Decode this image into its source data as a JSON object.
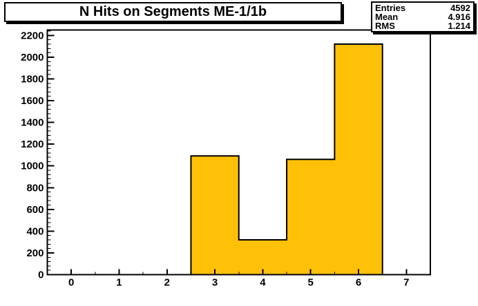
{
  "title_box": {
    "text": "N Hits on Segments ME-1/1b"
  },
  "stats_box": {
    "rows": [
      {
        "label": "Entries",
        "value": "4592"
      },
      {
        "label": "Mean",
        "value": "4.916"
      },
      {
        "label": "RMS",
        "value": "1.214"
      }
    ]
  },
  "chart_data": {
    "type": "bar",
    "title": "N Hits on Segments ME-1/1b",
    "categories": [
      0,
      1,
      2,
      3,
      4,
      5,
      6,
      7
    ],
    "values": [
      0,
      0,
      0,
      1092,
      320,
      1060,
      2120,
      0
    ],
    "bin_width": 1,
    "xlim": [
      -0.5,
      7.5
    ],
    "ylim": [
      0,
      2250
    ],
    "x_tick_labels": [
      "0",
      "1",
      "2",
      "3",
      "4",
      "5",
      "6",
      "7"
    ],
    "x_major_ticks": [
      0,
      1,
      2,
      3,
      4,
      5,
      6,
      7
    ],
    "x_minor_ticks": [
      0.5,
      1.5,
      2.5,
      3.5,
      4.5,
      5.5,
      6.5
    ],
    "y_tick_labels": [
      "0",
      "200",
      "400",
      "600",
      "800",
      "1000",
      "1200",
      "1400",
      "1600",
      "1800",
      "2000",
      "2200"
    ],
    "y_major_step": 200,
    "y_minor_step": 40,
    "grid": "off",
    "legend": "none",
    "bar_color": "#FFC107",
    "line_color": "#000000",
    "frame_color": "#000000",
    "background_color": "#FFFFFF",
    "stats": {
      "entries": 4592,
      "mean": 4.916,
      "rms": 1.214
    }
  }
}
